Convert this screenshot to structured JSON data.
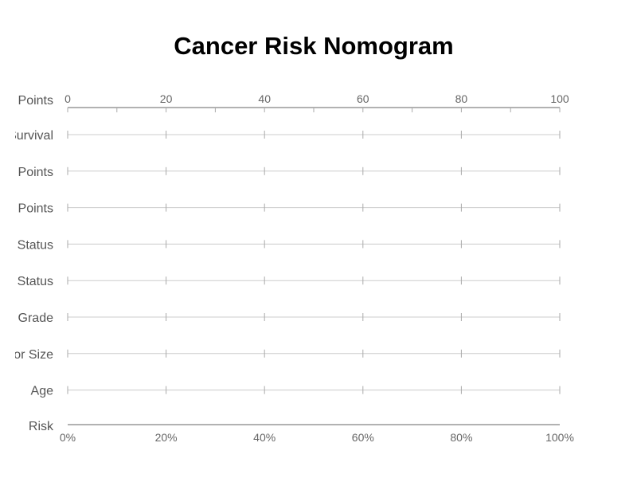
{
  "chart_data": {
    "type": "nomogram",
    "title": "Cancer Risk Nomogram",
    "points_axis": {
      "label": "Points",
      "min": 0,
      "max": 100,
      "tick_labels": [
        "0",
        "20",
        "40",
        "60",
        "80",
        "100"
      ],
      "tick_values": [
        0,
        20,
        40,
        60,
        80,
        100
      ],
      "minor_tick_values": [
        10,
        30,
        50,
        70,
        90
      ]
    },
    "scale_rows": [
      {
        "label": "Survival"
      },
      {
        "label": "Points"
      },
      {
        "label": "Points"
      },
      {
        "label": "Status"
      },
      {
        "label": "Status"
      },
      {
        "label": "Grade"
      },
      {
        "label": "Tumor Size"
      },
      {
        "label": "Age"
      }
    ],
    "scale_tick_values": [
      0,
      20,
      40,
      60,
      80,
      100
    ],
    "risk_axis": {
      "label": "Risk",
      "min": 0,
      "max": 1,
      "tick_labels": [
        "0%",
        "20%",
        "40%",
        "60%",
        "80%",
        "100%"
      ],
      "tick_values": [
        0,
        0.2,
        0.4,
        0.6,
        0.8,
        1.0
      ]
    },
    "colors": {
      "axis": "#999999",
      "scale_line": "#cccccc",
      "tick": "#aaaaaa",
      "text": "#666666",
      "label": "#555555"
    }
  }
}
